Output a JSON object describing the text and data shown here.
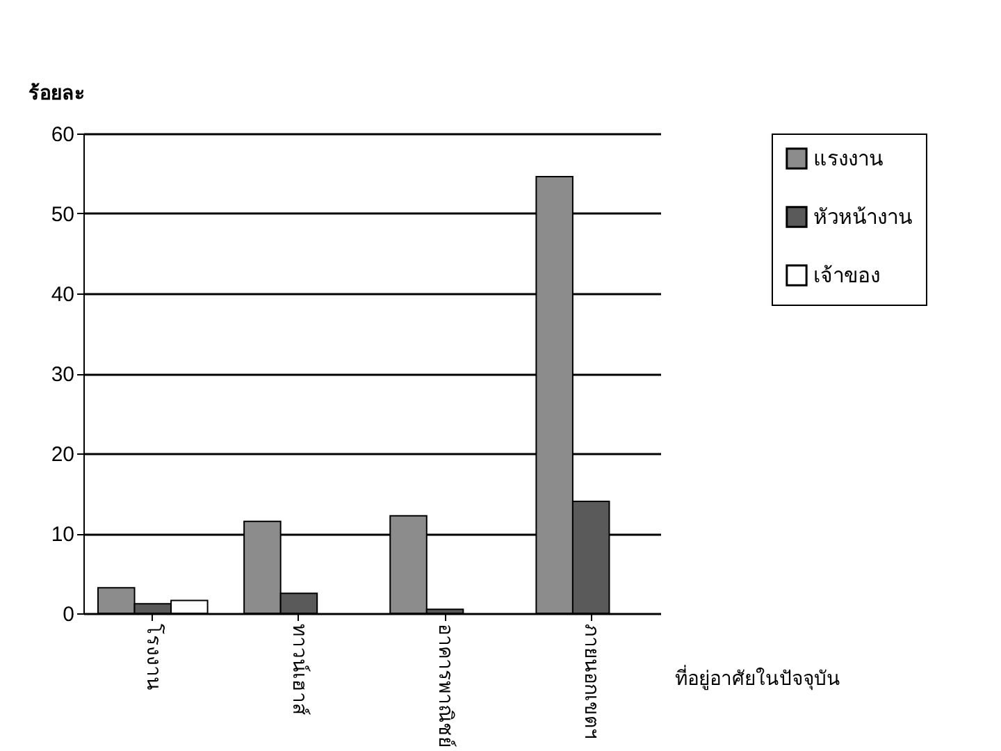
{
  "chart_data": {
    "type": "bar",
    "ylabel": "ร้อยละ",
    "xlabel": "ที่อยู่อาศัยในปัจจุบัน",
    "categories": [
      "โรงงาน",
      "ทาวน์เฮาส์",
      "อาคารพาณิชย์",
      "ภายนอกเขตฯ"
    ],
    "series": [
      {
        "name": "แรงงาน",
        "color": "#8c8c8c",
        "values": [
          3.2,
          11.5,
          12.2,
          54.6
        ]
      },
      {
        "name": "หัวหน้างาน",
        "color": "#5a5a5a",
        "values": [
          1.2,
          2.5,
          0.5,
          14
        ]
      },
      {
        "name": "เจ้าของ",
        "color": "#ffffff",
        "values": [
          1.6,
          0,
          0,
          0
        ]
      }
    ],
    "ylim": [
      0,
      60
    ],
    "yticks": [
      0,
      10,
      20,
      30,
      40,
      50,
      60
    ],
    "grid": "y",
    "legend": "right"
  }
}
